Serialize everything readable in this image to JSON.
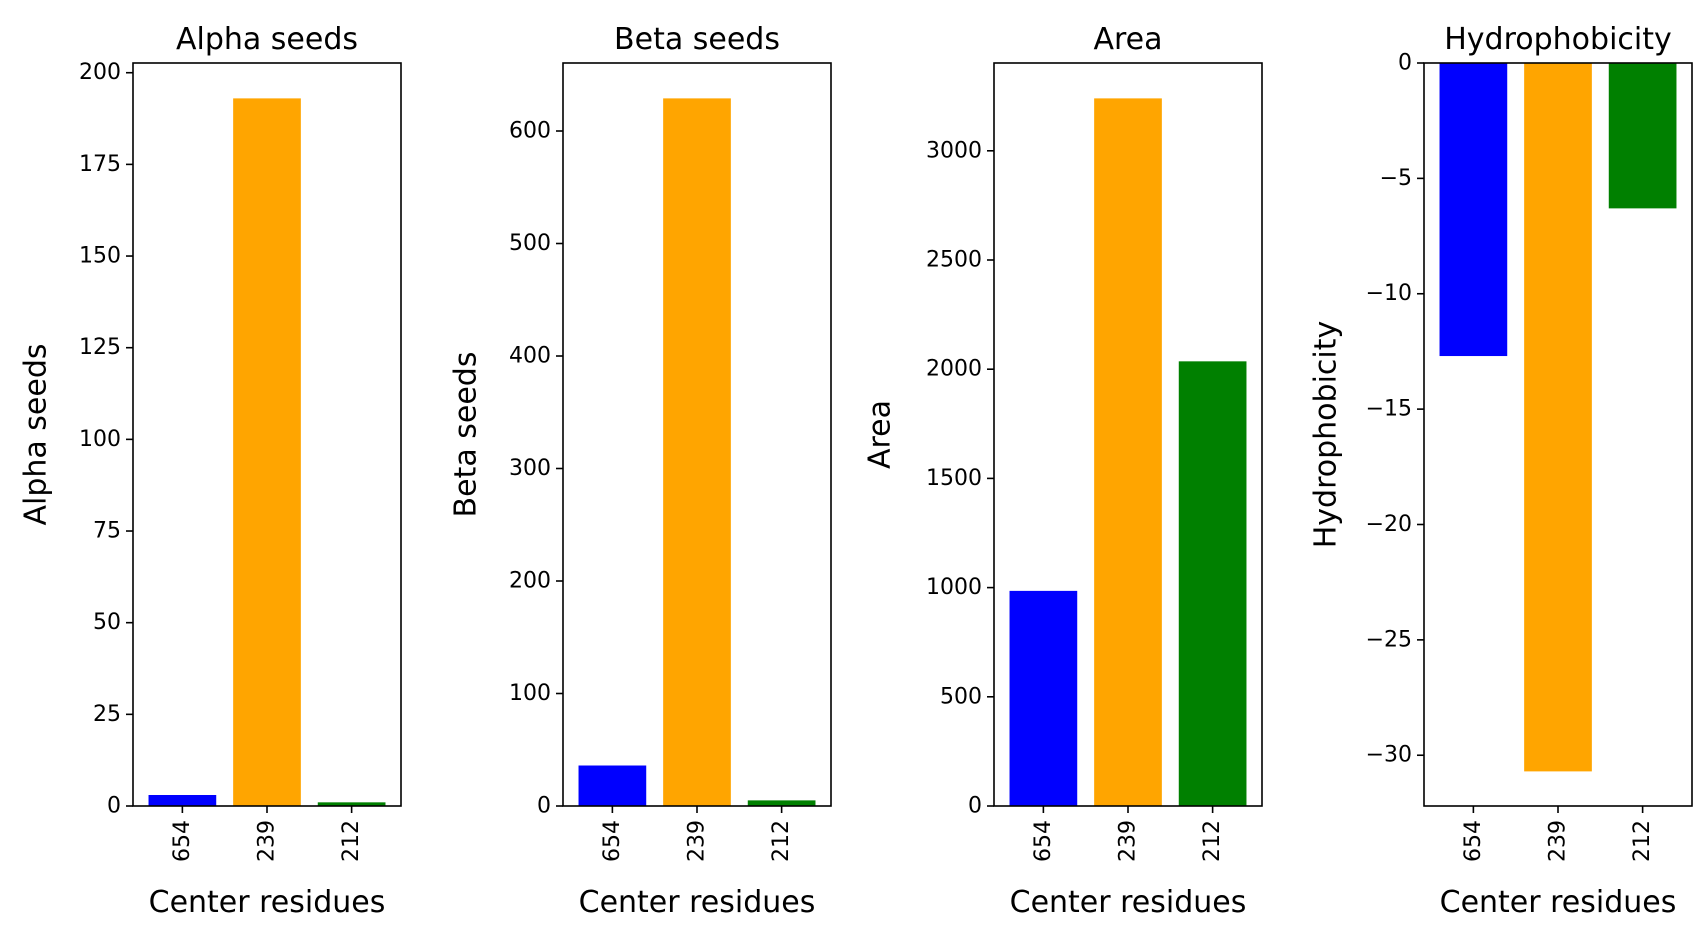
{
  "chart_data": [
    {
      "type": "bar",
      "title": "Alpha seeds",
      "xlabel": "Center residues",
      "ylabel": "Alpha seeds",
      "categories": [
        "654",
        "239",
        "212"
      ],
      "values": [
        3,
        193,
        1
      ],
      "colors": [
        "#0000ff",
        "#ffa500",
        "#008000"
      ],
      "ylim": [
        0,
        202.65
      ],
      "yticks": [
        0,
        25,
        50,
        75,
        100,
        125,
        150,
        175,
        200
      ],
      "ytick_labels": [
        "0",
        "25",
        "50",
        "75",
        "100",
        "125",
        "150",
        "175",
        "200"
      ],
      "grid": false
    },
    {
      "type": "bar",
      "title": "Beta seeds",
      "xlabel": "Center residues",
      "ylabel": "Beta seeds",
      "categories": [
        "654",
        "239",
        "212"
      ],
      "values": [
        36,
        629,
        5
      ],
      "colors": [
        "#0000ff",
        "#ffa500",
        "#008000"
      ],
      "ylim": [
        0,
        660.45
      ],
      "yticks": [
        0,
        100,
        200,
        300,
        400,
        500,
        600
      ],
      "ytick_labels": [
        "0",
        "100",
        "200",
        "300",
        "400",
        "500",
        "600"
      ],
      "grid": false
    },
    {
      "type": "bar",
      "title": "Area",
      "xlabel": "Center residues",
      "ylabel": "Area",
      "categories": [
        "654",
        "239",
        "212"
      ],
      "values": [
        985,
        3240,
        2036
      ],
      "colors": [
        "#0000ff",
        "#ffa500",
        "#008000"
      ],
      "ylim": [
        0,
        3402
      ],
      "yticks": [
        0,
        500,
        1000,
        1500,
        2000,
        2500,
        3000
      ],
      "ytick_labels": [
        "0",
        "500",
        "1000",
        "1500",
        "2000",
        "2500",
        "3000"
      ],
      "grid": false
    },
    {
      "type": "bar",
      "title": "Hydrophobicity",
      "xlabel": "Center residues",
      "ylabel": "Hydrophobicity",
      "categories": [
        "654",
        "239",
        "212"
      ],
      "values": [
        -12.7,
        -30.7,
        -6.3
      ],
      "colors": [
        "#0000ff",
        "#ffa500",
        "#008000"
      ],
      "ylim": [
        -32.2,
        0
      ],
      "yticks": [
        0,
        -5,
        -10,
        -15,
        -20,
        -25,
        -30
      ],
      "ytick_labels": [
        "0",
        "−5",
        "−10",
        "−15",
        "−20",
        "−25",
        "−30"
      ],
      "grid": false
    }
  ]
}
